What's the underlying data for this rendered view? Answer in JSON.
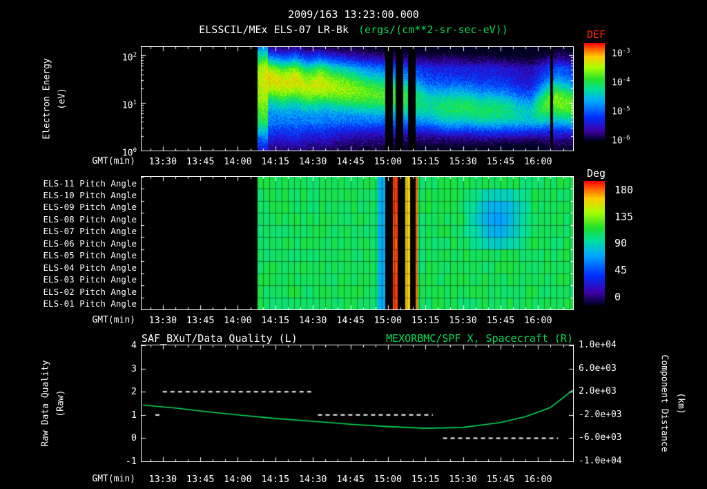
{
  "page": {
    "title_date": "2009/163 13:23:00.000",
    "title_main": "ELSSCIL/MEx ELS-07 LR-Bk",
    "title_units": "(ergs/(cm**2-sr-sec-eV))"
  },
  "labels": {
    "gmt": "GMT(min)",
    "def": "DEF",
    "deg": "Deg",
    "electron_energy": "Electron Energy",
    "electron_energy_units": "(eV)",
    "raw_quality_line1": "Raw Data Quality",
    "raw_quality_line2": "(Raw)",
    "component_distance": "Component Distance",
    "component_distance_units": "(km)"
  },
  "energy_ticks": [
    {
      "base": "10",
      "exp": "2"
    },
    {
      "base": "10",
      "exp": "1"
    },
    {
      "base": "10",
      "exp": "0"
    }
  ],
  "def_ticks": [
    {
      "base": "10",
      "exp": "-3"
    },
    {
      "base": "10",
      "exp": "-4"
    },
    {
      "base": "10",
      "exp": "-5"
    },
    {
      "base": "10",
      "exp": "-6"
    }
  ],
  "chart_data": [
    {
      "id": "electron_energy_spectrogram",
      "type": "heatmap",
      "title": "ELSSCIL/MEx ELS-07 LR-Bk",
      "units": "ergs/(cm**2-sr-sec-eV)",
      "x_axis": {
        "label": "GMT(min)",
        "range": [
          "13:22",
          "16:14"
        ],
        "ticks": [
          "13:30",
          "13:45",
          "14:00",
          "14:15",
          "14:30",
          "14:45",
          "15:00",
          "15:15",
          "15:30",
          "15:45",
          "16:00"
        ]
      },
      "y_axis": {
        "label": "Electron Energy (eV)",
        "scale": "log",
        "min": 1,
        "max": 150,
        "ticks": [
          1,
          10,
          100
        ]
      },
      "colorbar": {
        "label": "DEF",
        "scale": "log",
        "min": 1e-06,
        "max": 0.001,
        "ticks": [
          "1e-3",
          "1e-4",
          "1e-5",
          "1e-6"
        ]
      },
      "data_start": "14:08",
      "gaps": [
        [
          "14:59",
          "15:02"
        ],
        [
          "15:03",
          "15:06"
        ],
        [
          "15:08",
          "15:11"
        ],
        [
          "16:05",
          "16:06"
        ]
      ],
      "columns": [
        {
          "t": "14:08",
          "peak_eV": 28,
          "peak_log_def": -3.75,
          "bg_log_def": -5.1
        },
        {
          "t": "14:13",
          "peak_eV": 32,
          "peak_log_def": -3.5,
          "bg_log_def": -5.0
        },
        {
          "t": "14:18",
          "peak_eV": 26,
          "peak_log_def": -3.6,
          "bg_log_def": -5.05
        },
        {
          "t": "14:23",
          "peak_eV": 30,
          "peak_log_def": -3.55,
          "bg_log_def": -5.0
        },
        {
          "t": "14:28",
          "peak_eV": 22,
          "peak_log_def": -3.7,
          "bg_log_def": -5.1
        },
        {
          "t": "14:33",
          "peak_eV": 26,
          "peak_log_def": -3.6,
          "bg_log_def": -5.05
        },
        {
          "t": "14:38",
          "peak_eV": 22,
          "peak_log_def": -3.75,
          "bg_log_def": -5.15
        },
        {
          "t": "14:43",
          "peak_eV": 20,
          "peak_log_def": -3.8,
          "bg_log_def": -5.2
        },
        {
          "t": "14:48",
          "peak_eV": 18,
          "peak_log_def": -3.9,
          "bg_log_def": -5.25
        },
        {
          "t": "14:53",
          "peak_eV": 16,
          "peak_log_def": -4.0,
          "bg_log_def": -5.3
        },
        {
          "t": "14:58",
          "peak_eV": 15,
          "peak_log_def": -4.05,
          "bg_log_def": -5.3
        },
        {
          "t": "15:03",
          "peak_eV": 14,
          "peak_log_def": -4.1,
          "bg_log_def": -5.35
        },
        {
          "t": "15:07",
          "peak_eV": 13,
          "peak_log_def": -4.15,
          "bg_log_def": -5.35
        },
        {
          "t": "15:12",
          "peak_eV": 11,
          "peak_log_def": -4.3,
          "bg_log_def": -5.4
        },
        {
          "t": "15:17",
          "peak_eV": 9,
          "peak_log_def": -4.45,
          "bg_log_def": -5.45
        },
        {
          "t": "15:22",
          "peak_eV": 8,
          "peak_log_def": -4.3,
          "bg_log_def": -5.45
        },
        {
          "t": "15:27",
          "peak_eV": 8,
          "peak_log_def": -4.25,
          "bg_log_def": -5.45
        },
        {
          "t": "15:32",
          "peak_eV": 8,
          "peak_log_def": -4.25,
          "bg_log_def": -5.5
        },
        {
          "t": "15:37",
          "peak_eV": 7,
          "peak_log_def": -4.3,
          "bg_log_def": -5.5
        },
        {
          "t": "15:42",
          "peak_eV": 7,
          "peak_log_def": -4.3,
          "bg_log_def": -5.5
        },
        {
          "t": "15:47",
          "peak_eV": 7,
          "peak_log_def": -4.35,
          "bg_log_def": -5.55
        },
        {
          "t": "15:52",
          "peak_eV": 6,
          "peak_log_def": -4.5,
          "bg_log_def": -5.6
        },
        {
          "t": "15:57",
          "peak_eV": 6,
          "peak_log_def": -4.6,
          "bg_log_def": -5.65
        },
        {
          "t": "16:01",
          "peak_eV": 8,
          "peak_log_def": -4.2,
          "bg_log_def": -5.5
        },
        {
          "t": "16:04",
          "peak_eV": 10,
          "peak_log_def": -4.0,
          "bg_log_def": -5.4
        },
        {
          "t": "16:08",
          "peak_eV": 11,
          "peak_log_def": -3.9,
          "bg_log_def": -5.3
        },
        {
          "t": "16:11",
          "peak_eV": 10,
          "peak_log_def": -3.95,
          "bg_log_def": -5.35
        },
        {
          "t": "16:14",
          "peak_eV": 9,
          "peak_log_def": -4.0,
          "bg_log_def": -5.4
        }
      ]
    },
    {
      "id": "pitch_angle_panels",
      "type": "heatmap",
      "rows": [
        "ELS-11 Pitch Angle",
        "ELS-10 Pitch Angle",
        "ELS-09 Pitch Angle",
        "ELS-08 Pitch Angle",
        "ELS-07 Pitch Angle",
        "ELS-06 Pitch Angle",
        "ELS-05 Pitch Angle",
        "ELS-04 Pitch Angle",
        "ELS-03 Pitch Angle",
        "ELS-02 Pitch Angle",
        "ELS-01 Pitch Angle"
      ],
      "colorbar": {
        "label": "Deg",
        "min": 0,
        "max": 180,
        "ticks": [
          180,
          135,
          90,
          45,
          0
        ]
      },
      "data_start": "14:08",
      "base_angle_deg": 105,
      "gaps": [
        [
          "14:59",
          "15:02"
        ],
        [
          "15:04",
          "15:07"
        ],
        [
          "15:09",
          "15:11"
        ]
      ],
      "features": [
        {
          "t0": "14:56",
          "t1": "14:59",
          "angle_deg": 75,
          "rows": [
            0,
            10
          ],
          "soft": false
        },
        {
          "t0": "15:02",
          "t1": "15:04",
          "angle_deg": 172,
          "rows": [
            0,
            10
          ],
          "soft": false
        },
        {
          "t0": "15:07",
          "t1": "15:09",
          "angle_deg": 152,
          "rows": [
            0,
            10
          ],
          "soft": false
        },
        {
          "t0": "15:11",
          "t1": "15:12",
          "angle_deg": 168,
          "rows": [
            0,
            10
          ],
          "soft": false
        },
        {
          "t0": "15:31",
          "t1": "15:57",
          "angle_deg": 70,
          "rows": [
            1,
            5
          ],
          "soft": true
        }
      ]
    },
    {
      "id": "quality_and_distance",
      "type": "line",
      "left_title": "SAF_BXuT/Data Quality (L)",
      "right_title": "MEXORBMC/SPF X, Spacecraft (R)",
      "left_axis": {
        "label": "Raw Data Quality (Raw)",
        "min": -1,
        "max": 4,
        "ticks": [
          "4",
          "3",
          "2",
          "1",
          "0",
          "-1"
        ]
      },
      "right_axis": {
        "label": "Component Distance (km)",
        "min": -10000,
        "max": 10000,
        "ticks": [
          "1.0e+04",
          "6.0e+03",
          "2.0e+03",
          "-2.0e+03",
          "-6.0e+03",
          "-1.0e+04"
        ]
      },
      "quality_segments": [
        {
          "t0": "13:27",
          "t1": "13:29",
          "value": 1
        },
        {
          "t0": "13:30",
          "t1": "14:30",
          "value": 2
        },
        {
          "t0": "14:32",
          "t1": "15:18",
          "value": 1
        },
        {
          "t0": "15:22",
          "t1": "16:08",
          "value": 0
        }
      ],
      "distance_series_km": [
        [
          "13:22",
          -300
        ],
        [
          "13:35",
          -800
        ],
        [
          "13:45",
          -1300
        ],
        [
          "14:00",
          -2000
        ],
        [
          "14:15",
          -2600
        ],
        [
          "14:30",
          -3100
        ],
        [
          "14:45",
          -3600
        ],
        [
          "15:00",
          -4000
        ],
        [
          "15:15",
          -4300
        ],
        [
          "15:30",
          -4150
        ],
        [
          "15:45",
          -3300
        ],
        [
          "15:55",
          -2300
        ],
        [
          "16:05",
          -700
        ],
        [
          "16:14",
          2300
        ]
      ]
    }
  ]
}
